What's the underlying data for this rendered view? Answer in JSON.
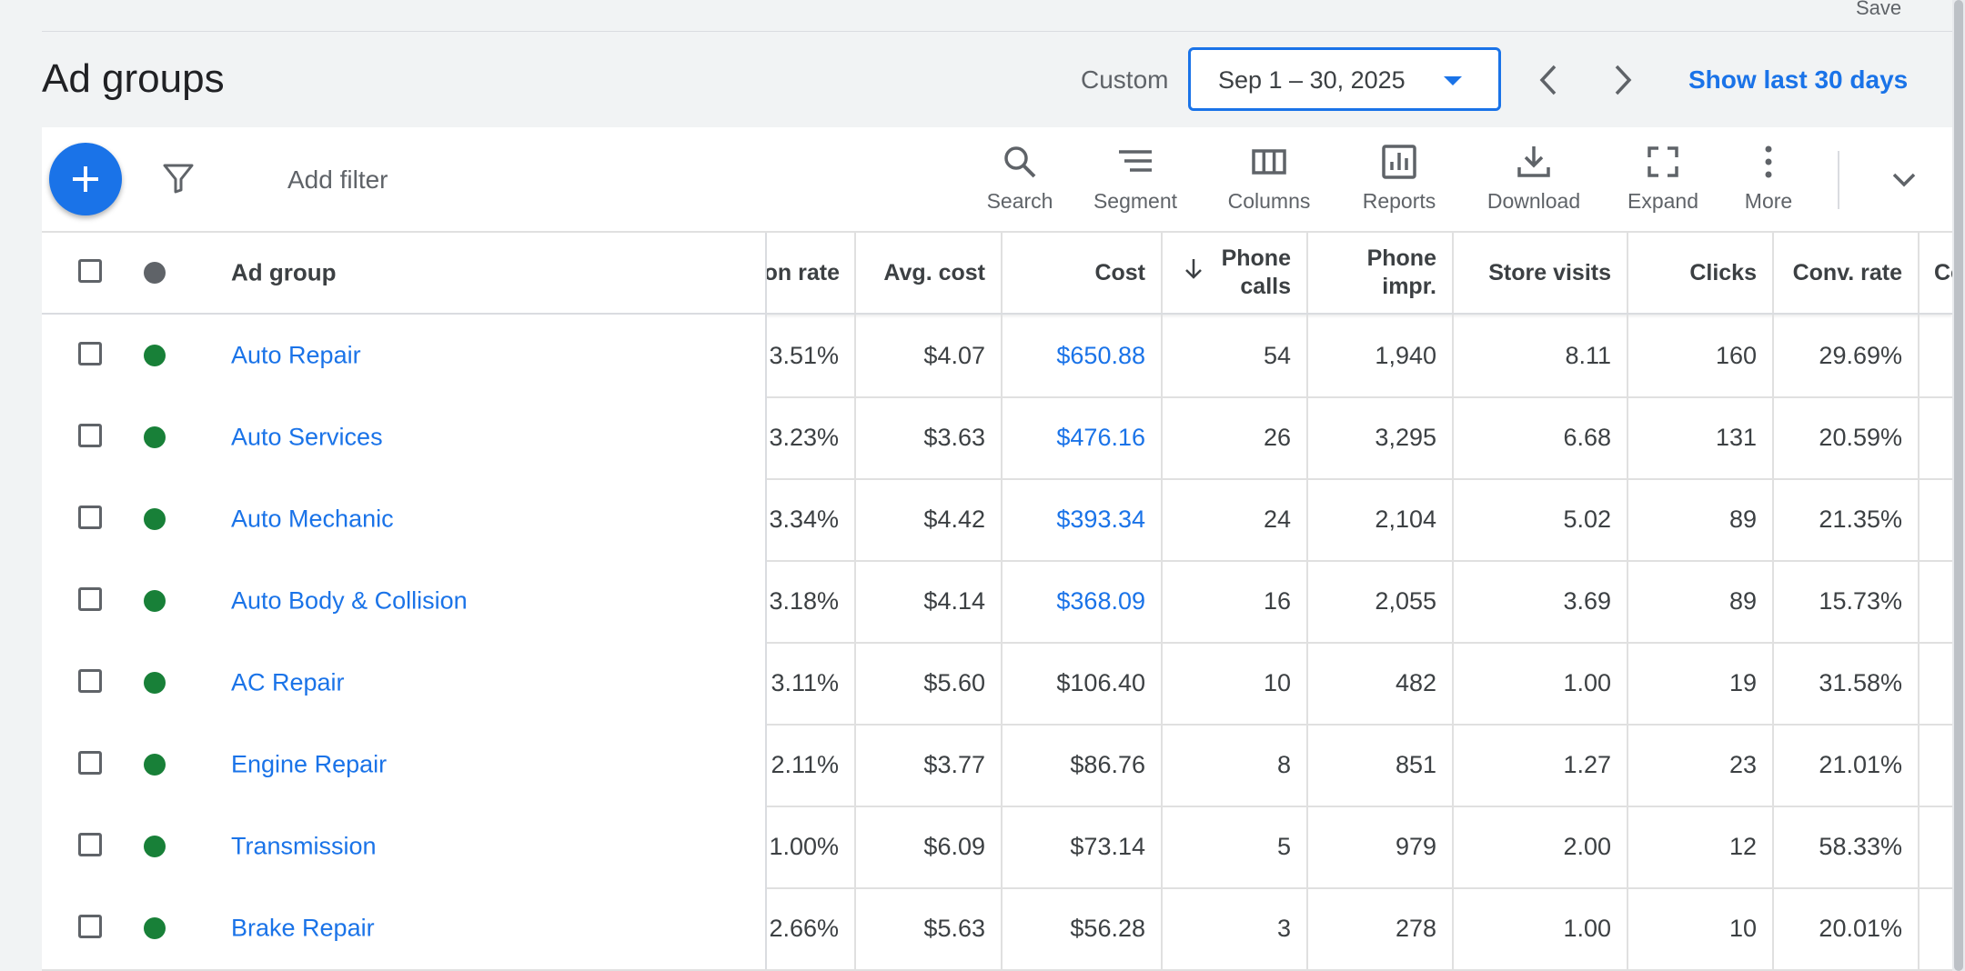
{
  "top": {
    "save_label": "Save",
    "page_title": "Ad groups",
    "date_range_label": "Custom",
    "date_range_value": "Sep 1 – 30, 2025",
    "show_last_label": "Show last 30 days"
  },
  "toolbar": {
    "add_filter_label": "Add filter",
    "tools": [
      {
        "label": "Search",
        "icon": "search-icon"
      },
      {
        "label": "Segment",
        "icon": "segment-icon"
      },
      {
        "label": "Columns",
        "icon": "columns-icon"
      },
      {
        "label": "Reports",
        "icon": "reports-icon"
      },
      {
        "label": "Download",
        "icon": "download-icon"
      },
      {
        "label": "Expand",
        "icon": "expand-icon"
      },
      {
        "label": "More",
        "icon": "more-vert-icon"
      }
    ]
  },
  "table": {
    "headers": {
      "ad_group": "Ad group",
      "interaction_rate": "raction rate",
      "avg_cost": "Avg. cost",
      "cost": "Cost",
      "phone_calls": "Phone calls",
      "phone_impr": "Phone impr.",
      "store_visits": "Store visits",
      "clicks": "Clicks",
      "conv_rate": "Conv. rate",
      "next_col": "Co"
    },
    "rows": [
      {
        "name": "Auto Repair",
        "interaction_rate": "3.51%",
        "avg_cost": "$4.07",
        "cost": "$650.88",
        "phone_calls": "54",
        "phone_impr": "1,940",
        "store_visits": "8.11",
        "clicks": "160",
        "conv_rate": "29.69%"
      },
      {
        "name": "Auto Services",
        "interaction_rate": "3.23%",
        "avg_cost": "$3.63",
        "cost": "$476.16",
        "phone_calls": "26",
        "phone_impr": "3,295",
        "store_visits": "6.68",
        "clicks": "131",
        "conv_rate": "20.59%"
      },
      {
        "name": "Auto Mechanic",
        "interaction_rate": "3.34%",
        "avg_cost": "$4.42",
        "cost": "$393.34",
        "phone_calls": "24",
        "phone_impr": "2,104",
        "store_visits": "5.02",
        "clicks": "89",
        "conv_rate": "21.35%"
      },
      {
        "name": "Auto Body & Collision",
        "interaction_rate": "3.18%",
        "avg_cost": "$4.14",
        "cost": "$368.09",
        "phone_calls": "16",
        "phone_impr": "2,055",
        "store_visits": "3.69",
        "clicks": "89",
        "conv_rate": "15.73%"
      },
      {
        "name": "AC Repair",
        "interaction_rate": "3.11%",
        "avg_cost": "$5.60",
        "cost": "$106.40",
        "phone_calls": "10",
        "phone_impr": "482",
        "store_visits": "1.00",
        "clicks": "19",
        "conv_rate": "31.58%"
      },
      {
        "name": "Engine Repair",
        "interaction_rate": "2.11%",
        "avg_cost": "$3.77",
        "cost": "$86.76",
        "phone_calls": "8",
        "phone_impr": "851",
        "store_visits": "1.27",
        "clicks": "23",
        "conv_rate": "21.01%"
      },
      {
        "name": "Transmission",
        "interaction_rate": "1.00%",
        "avg_cost": "$6.09",
        "cost": "$73.14",
        "phone_calls": "5",
        "phone_impr": "979",
        "store_visits": "2.00",
        "clicks": "12",
        "conv_rate": "58.33%"
      },
      {
        "name": "Brake Repair",
        "interaction_rate": "2.66%",
        "avg_cost": "$5.63",
        "cost": "$56.28",
        "phone_calls": "3",
        "phone_impr": "278",
        "store_visits": "1.00",
        "clicks": "10",
        "conv_rate": "20.01%"
      }
    ]
  },
  "colors": {
    "accent": "#1a73e8",
    "status_enabled": "#188038",
    "background": "#f1f3f4"
  }
}
